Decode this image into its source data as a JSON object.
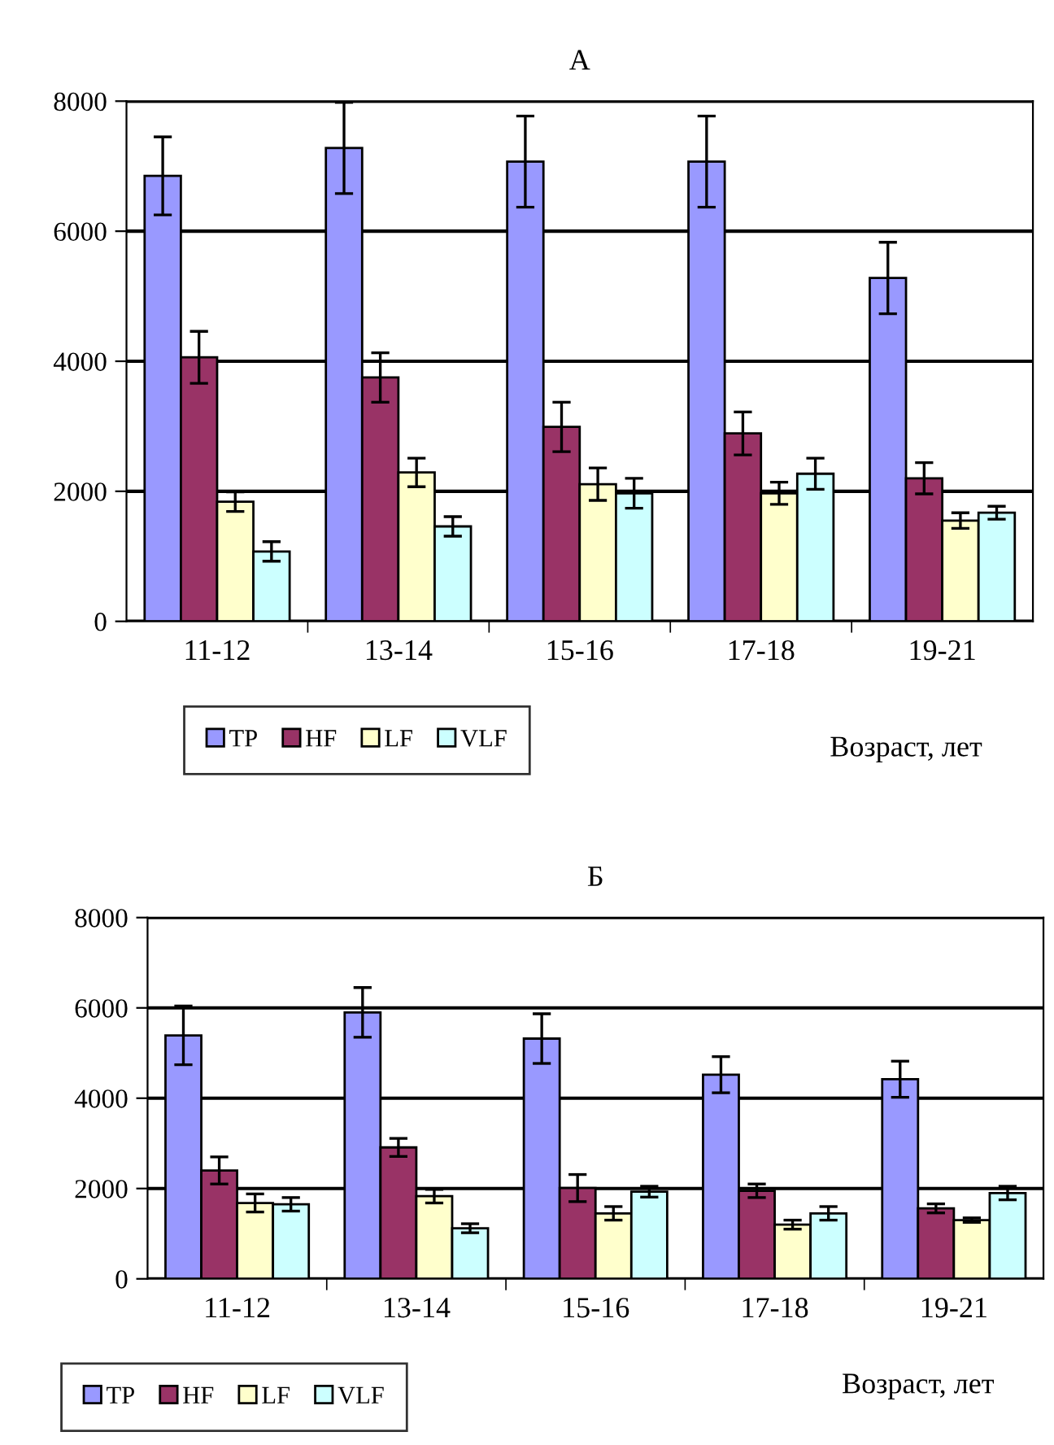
{
  "chart_data": [
    {
      "type": "bar",
      "title": "А",
      "xlabel": "Возраст, лет",
      "categories": [
        "11-12",
        "13-14",
        "15-16",
        "17-18",
        "19-21"
      ],
      "series": [
        {
          "name": "TP",
          "color": "#9999ff",
          "values": [
            6850,
            7280,
            7070,
            7070,
            5280
          ],
          "errors": [
            600,
            700,
            700,
            700,
            550
          ]
        },
        {
          "name": "HF",
          "color": "#993366",
          "values": [
            4060,
            3750,
            2990,
            2890,
            2200
          ],
          "errors": [
            400,
            380,
            380,
            330,
            240
          ]
        },
        {
          "name": "LF",
          "color": "#ffffcc",
          "values": [
            1840,
            2290,
            2110,
            1970,
            1550
          ],
          "errors": [
            150,
            220,
            250,
            170,
            120
          ]
        },
        {
          "name": "VLF",
          "color": "#ccffff",
          "values": [
            1075,
            1460,
            1970,
            2270,
            1670
          ],
          "errors": [
            150,
            150,
            230,
            240,
            100
          ]
        }
      ],
      "ylim": [
        0,
        8000
      ],
      "yticks": [
        0,
        2000,
        4000,
        6000,
        8000
      ],
      "grid": "y",
      "legend": "bottom"
    },
    {
      "type": "bar",
      "title": "Б",
      "xlabel": "Возраст, лет",
      "categories": [
        "11-12",
        "13-14",
        "15-16",
        "17-18",
        "19-21"
      ],
      "series": [
        {
          "name": "TP",
          "color": "#9999ff",
          "values": [
            5390,
            5900,
            5320,
            4520,
            4420
          ],
          "errors": [
            650,
            550,
            550,
            400,
            400
          ]
        },
        {
          "name": "HF",
          "color": "#993366",
          "values": [
            2400,
            2910,
            2010,
            1950,
            1560
          ],
          "errors": [
            300,
            200,
            300,
            150,
            100
          ]
        },
        {
          "name": "LF",
          "color": "#ffffcc",
          "values": [
            1680,
            1830,
            1450,
            1200,
            1300
          ],
          "errors": [
            200,
            150,
            150,
            100,
            50
          ]
        },
        {
          "name": "VLF",
          "color": "#ccffff",
          "values": [
            1650,
            1120,
            1930,
            1450,
            1900
          ],
          "errors": [
            150,
            100,
            120,
            150,
            150
          ]
        }
      ],
      "ylim": [
        0,
        8000
      ],
      "yticks": [
        0,
        2000,
        4000,
        6000,
        8000
      ],
      "grid": "y",
      "legend": "bottom"
    }
  ]
}
